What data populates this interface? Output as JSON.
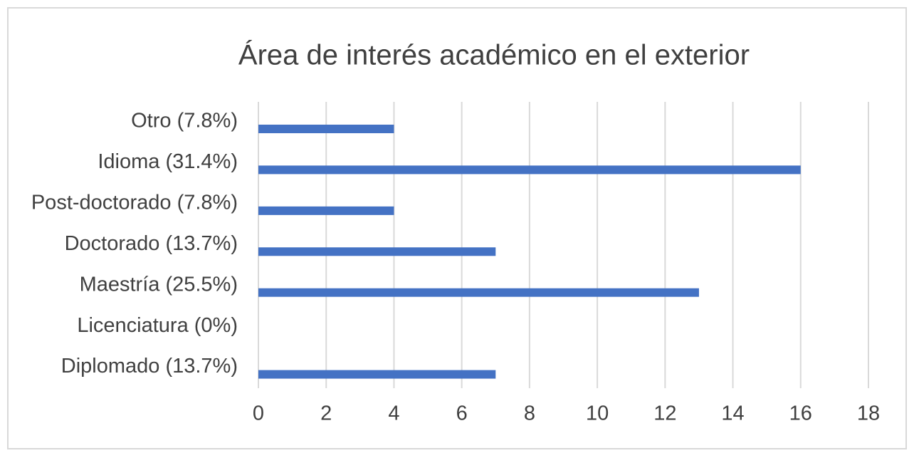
{
  "chart_data": {
    "type": "bar",
    "orientation": "horizontal",
    "title": "Área de interés académico en el exterior",
    "categories": [
      "Otro (7.8%)",
      "Idioma (31.4%)",
      "Post-doctorado (7.8%)",
      "Doctorado (13.7%)",
      "Maestría (25.5%)",
      "Licenciatura (0%)",
      "Diplomado (13.7%)"
    ],
    "values": [
      4,
      16,
      4,
      7,
      13,
      0,
      7
    ],
    "color": "#4472c4",
    "xlim": [
      0,
      18
    ],
    "xticks": [
      0,
      2,
      4,
      6,
      8,
      10,
      12,
      14,
      16,
      18
    ],
    "grid": true
  }
}
